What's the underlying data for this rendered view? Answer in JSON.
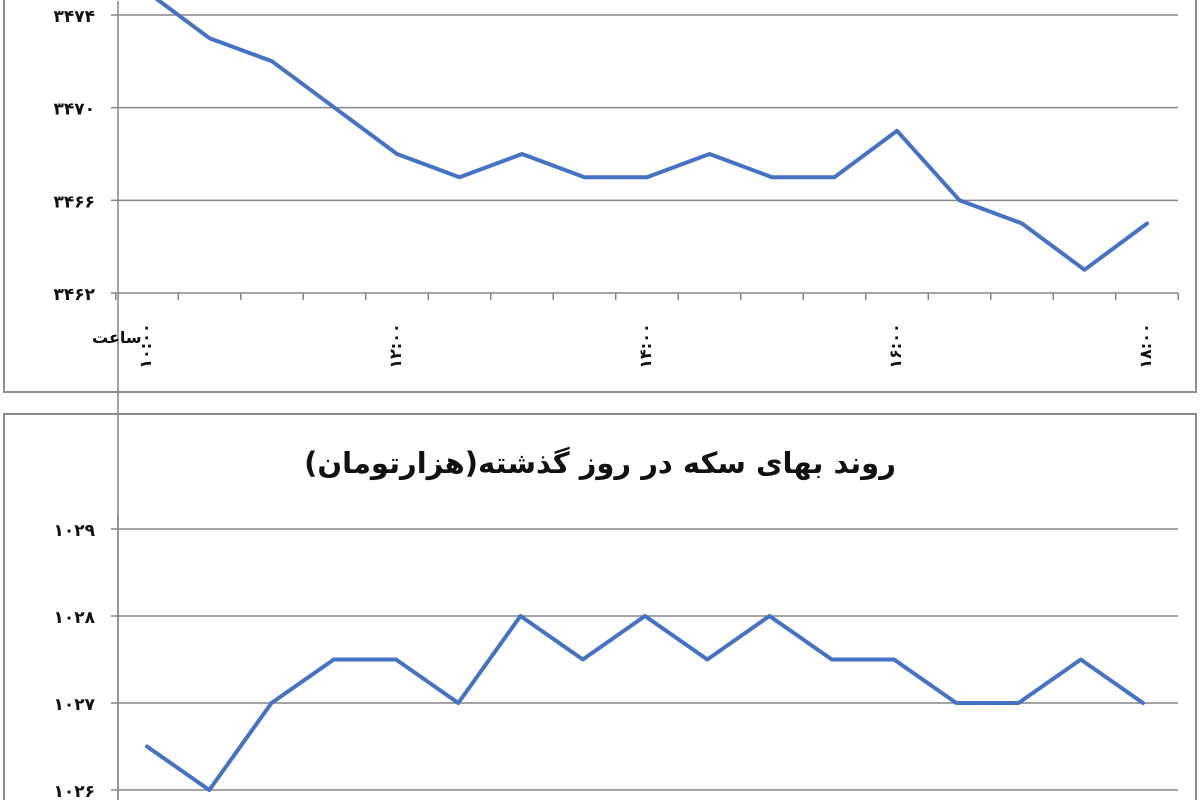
{
  "colors": {
    "line": "#4472C4",
    "grid": "#868686",
    "frame": "#8c8c8c",
    "text": "#111111"
  },
  "chart_data": [
    {
      "type": "line",
      "title": "",
      "xlabel": "ساعت",
      "ylabel": "",
      "ylim": [
        3462,
        3475
      ],
      "y_ticks": [
        3462,
        3466,
        3470,
        3474
      ],
      "y_tick_labels": [
        "۳۴۶۲",
        "۳۴۶۶",
        "۳۴۷۰",
        "۳۴۷۴"
      ],
      "x_tick_labels": [
        "۱۰:۰۰",
        "۱۲:۰۰",
        "۱۴:۰۰",
        "۱۶:۰۰",
        "۱۸:۰۰"
      ],
      "x_tick_at_point": [
        0,
        4,
        8,
        12,
        16
      ],
      "grid": true,
      "series": [
        {
          "values": [
            3475,
            3473,
            3472,
            3470,
            3468,
            3467,
            3468,
            3467,
            3467,
            3468,
            3467,
            3467,
            3469,
            3466,
            3465,
            3463,
            3465
          ]
        }
      ]
    },
    {
      "type": "line",
      "title": "روند بهای سکه در روز گذشته(هزارتومان)",
      "xlabel": "",
      "ylabel": "",
      "ylim": [
        1026,
        1029
      ],
      "y_ticks": [
        1026,
        1027,
        1028,
        1029
      ],
      "y_tick_labels": [
        "۱۰۲۶",
        "۱۰۲۷",
        "۱۰۲۸",
        "۱۰۲۹"
      ],
      "grid": true,
      "series": [
        {
          "values": [
            1026.5,
            1026,
            1027,
            1027.5,
            1027.5,
            1027,
            1028,
            1027.5,
            1028,
            1027.5,
            1028,
            1027.5,
            1027.5,
            1027,
            1027,
            1027.5,
            1027
          ]
        }
      ]
    }
  ]
}
